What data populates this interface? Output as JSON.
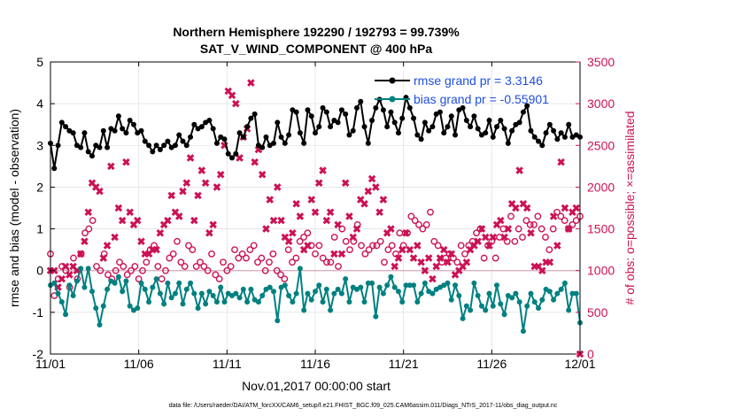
{
  "chart_data": {
    "type": "line",
    "title": "Northern Hemisphere 192290 / 192793 = 99.739%",
    "subtitle": "SAT_V_WIND_COMPONENT @ 400 hPa",
    "xlabel": "Nov.01,2017 00:00:00 start",
    "ylabel_left": "rmse and bias (model - observation)",
    "ylabel_right": "# of obs: o=possible; ×=assimilated",
    "x_tick_labels": [
      "11/01",
      "11/06",
      "11/11",
      "11/16",
      "11/21",
      "11/26",
      "12/01"
    ],
    "x_tick_values": [
      0,
      5,
      10,
      15,
      20,
      25,
      30
    ],
    "xlim": [
      0,
      30
    ],
    "ylim_left": [
      -2,
      5
    ],
    "y_left_ticks": [
      "-2",
      "-1",
      "0",
      "1",
      "2",
      "3",
      "4",
      "5"
    ],
    "ylim_right": [
      0,
      3500
    ],
    "y_right_ticks": [
      "0",
      "500",
      "1000",
      "1500",
      "2000",
      "2500",
      "3000",
      "3500"
    ],
    "legend_position": "top-right",
    "footer": "data file: /Users/raeder/DAI/ATM_forcXX/CAM6_setup/f.e21.FHIST_BGC.f09_025.CAM6assim.011/Diags_NTrS_2017-11/obs_diag_output.nc",
    "series": [
      {
        "name": "rmse grand pr = 3.3146",
        "axis": "left",
        "color": "#000000",
        "marker": "dot",
        "values": [
          3.05,
          2.45,
          3.0,
          3.55,
          3.45,
          3.35,
          3.3,
          3.0,
          2.95,
          3.3,
          2.85,
          2.75,
          3.0,
          2.95,
          3.35,
          2.95,
          3.4,
          3.35,
          3.7,
          3.4,
          3.3,
          3.6,
          3.5,
          3.3,
          3.35,
          3.1,
          3.0,
          2.85,
          3.0,
          2.9,
          3.0,
          3.1,
          2.95,
          3.0,
          3.25,
          3.1,
          3.0,
          3.2,
          3.5,
          3.4,
          3.45,
          3.55,
          3.6,
          3.4,
          3.05,
          3.2,
          3.15,
          2.8,
          2.7,
          2.8,
          3.3,
          3.2,
          3.45,
          3.65,
          3.75,
          3.0,
          2.95,
          3.2,
          3.0,
          3.05,
          3.55,
          3.2,
          3.05,
          3.25,
          3.85,
          3.8,
          3.3,
          3.05,
          3.85,
          3.7,
          3.3,
          3.45,
          3.9,
          3.8,
          3.45,
          3.6,
          3.55,
          3.85,
          3.75,
          3.25,
          3.35,
          3.9,
          4.05,
          3.45,
          3.05,
          3.6,
          3.9,
          4.1,
          3.85,
          3.45,
          3.8,
          3.55,
          3.3,
          3.65,
          4.15,
          3.9,
          3.65,
          3.25,
          3.15,
          3.55,
          3.35,
          3.45,
          3.75,
          3.8,
          3.3,
          3.45,
          3.7,
          3.25,
          3.85,
          3.9,
          3.6,
          3.45,
          3.7,
          3.4,
          3.25,
          3.3,
          3.6,
          3.2,
          3.45,
          3.6,
          3.4,
          3.05,
          3.35,
          3.5,
          3.55,
          3.8,
          3.95,
          3.35,
          3.2,
          3.1,
          3.0,
          3.3,
          3.5,
          3.35,
          3.15,
          3.3,
          3.2,
          3.5,
          3.2,
          3.25,
          3.2
        ]
      },
      {
        "name": "bias grand pr = -0.55901",
        "axis": "left",
        "color": "#008080",
        "marker": "dot",
        "values": [
          -0.35,
          -0.3,
          -0.55,
          -0.75,
          -1.05,
          -0.35,
          -0.6,
          -0.25,
          0.05,
          -0.4,
          0.05,
          -0.5,
          -0.9,
          -1.3,
          -0.85,
          -0.45,
          -0.25,
          -0.3,
          -0.15,
          -0.5,
          -0.25,
          -0.85,
          -0.95,
          -0.9,
          -0.3,
          -0.45,
          -0.75,
          -0.4,
          -0.2,
          -0.55,
          -0.8,
          -0.3,
          -0.65,
          -0.55,
          -0.3,
          -0.8,
          -0.45,
          -0.3,
          -0.55,
          -0.9,
          -0.55,
          -0.8,
          -0.5,
          -0.6,
          -0.75,
          -0.4,
          -0.75,
          -0.55,
          -0.6,
          -0.55,
          -0.65,
          -0.45,
          -0.75,
          -0.45,
          -0.7,
          -0.75,
          -0.6,
          -0.45,
          -0.4,
          -0.5,
          -1.2,
          -0.4,
          -0.35,
          -0.6,
          -0.75,
          -0.55,
          0.05,
          -0.95,
          -0.55,
          -0.7,
          -0.5,
          -0.35,
          -0.75,
          -0.45,
          -0.95,
          -0.55,
          -0.45,
          -0.55,
          -0.2,
          -0.75,
          -0.4,
          -0.45,
          -0.4,
          -0.75,
          -0.3,
          -0.3,
          -1.1,
          -0.4,
          -0.55,
          -0.35,
          -0.15,
          -0.4,
          -0.5,
          -0.75,
          -0.35,
          -0.35,
          -0.35,
          -0.75,
          -0.55,
          -0.3,
          -0.5,
          -0.55,
          -0.45,
          -0.4,
          -0.35,
          -0.3,
          -0.7,
          -0.35,
          -0.6,
          -1.15,
          -0.85,
          -0.95,
          -0.3,
          -0.6,
          -0.85,
          -0.95,
          -0.55,
          -0.85,
          -0.35,
          -0.8,
          -1.05,
          -0.6,
          -0.65,
          -0.55,
          -0.75,
          -1.45,
          -0.85,
          -0.55,
          -0.75,
          -0.9,
          -0.7,
          -0.45,
          -0.5,
          -0.7,
          -0.55,
          -0.45,
          -0.3,
          -0.95,
          -0.55,
          -0.55,
          -1.25
        ]
      },
      {
        "name": "# of obs possible",
        "axis": "right",
        "color": "#cc1155",
        "marker": "o",
        "values": [
          1200,
          700,
          900,
          1050,
          1000,
          800,
          1150,
          900,
          1200,
          1450,
          1500,
          1600,
          1050,
          1000,
          1200,
          950,
          900,
          1000,
          1100,
          1050,
          950,
          1000,
          1050,
          900,
          1000,
          1100,
          1250,
          1300,
          1050,
          900,
          1000,
          1150,
          1200,
          1350,
          1100,
          1050,
          1300,
          1250,
          1050,
          1100,
          1050,
          1000,
          1200,
          950,
          900,
          1100,
          1000,
          1050,
          1250,
          1150,
          1200,
          1150,
          1250,
          1300,
          1100,
          1150,
          1000,
          1100,
          1200,
          1000,
          950,
          900,
          1250,
          1100,
          1150,
          1350,
          1400,
          1450,
          1300,
          1200,
          1300,
          1150,
          1100,
          1100,
          1400,
          1050,
          1500,
          1350,
          1250,
          1350,
          1550,
          1300,
          1200,
          1250,
          1300,
          1300,
          1350,
          1100,
          1250,
          1300,
          1200,
          1450,
          1300,
          1450,
          1650,
          1600,
          1550,
          1500,
          1550,
          1700,
          1350,
          1300,
          1100,
          1150,
          1200,
          1150,
          1100,
          1300,
          1200,
          1300,
          1350,
          1450,
          1500,
          1150,
          1300,
          1350,
          1150,
          1400,
          1500,
          1350,
          1650,
          1350,
          1500,
          1400,
          1600,
          1550,
          1550,
          1650,
          1500,
          1400,
          1250,
          1500,
          1700,
          1650,
          1600,
          1500,
          1550,
          1600,
          1650
        ]
      },
      {
        "name": "# of obs assimilated",
        "axis": "right",
        "color": "#cc1155",
        "marker": "x",
        "values": [
          1000,
          1000,
          800,
          900,
          1050,
          950,
          1050,
          1000,
          1200,
          1350,
          1700,
          2050,
          2000,
          1950,
          1150,
          1300,
          2250,
          1400,
          1750,
          1600,
          2300,
          1700,
          1550,
          1600,
          1350,
          1200,
          1200,
          1250,
          1250,
          1450,
          1550,
          1600,
          1900,
          1700,
          1650,
          1950,
          2050,
          2350,
          1600,
          1900,
          2200,
          2050,
          1450,
          1550,
          2000,
          2150,
          2500,
          3150,
          3100,
          3000,
          2350,
          2600,
          2700,
          3250,
          2300,
          2450,
          2150,
          1500,
          1850,
          1600,
          2000,
          1600,
          1400,
          1350,
          1450,
          1800,
          1650,
          1250,
          1300,
          1850,
          1700,
          2050,
          2200,
          1600,
          1700,
          1200,
          1550,
          1200,
          2050,
          1650,
          1400,
          1500,
          1850,
          1800,
          1950,
          2100,
          2000,
          1700,
          1850,
          1450,
          1500,
          1050,
          1150,
          1250,
          1450,
          1250,
          1150,
          1300,
          1100,
          1000,
          1150,
          900,
          1050,
          1150,
          1250,
          1100,
          1200,
          950,
          1000,
          1050,
          1100,
          1250,
          1300,
          1350,
          1500,
          1400,
          1300,
          1400,
          1550,
          1600,
          1400,
          1500,
          1800,
          1750,
          2200,
          1800,
          1750,
          1450,
          1050,
          1050,
          1000,
          1100,
          1100,
          1650,
          1300,
          2300,
          1750,
          1500,
          1700,
          1750,
          0
        ]
      }
    ]
  }
}
